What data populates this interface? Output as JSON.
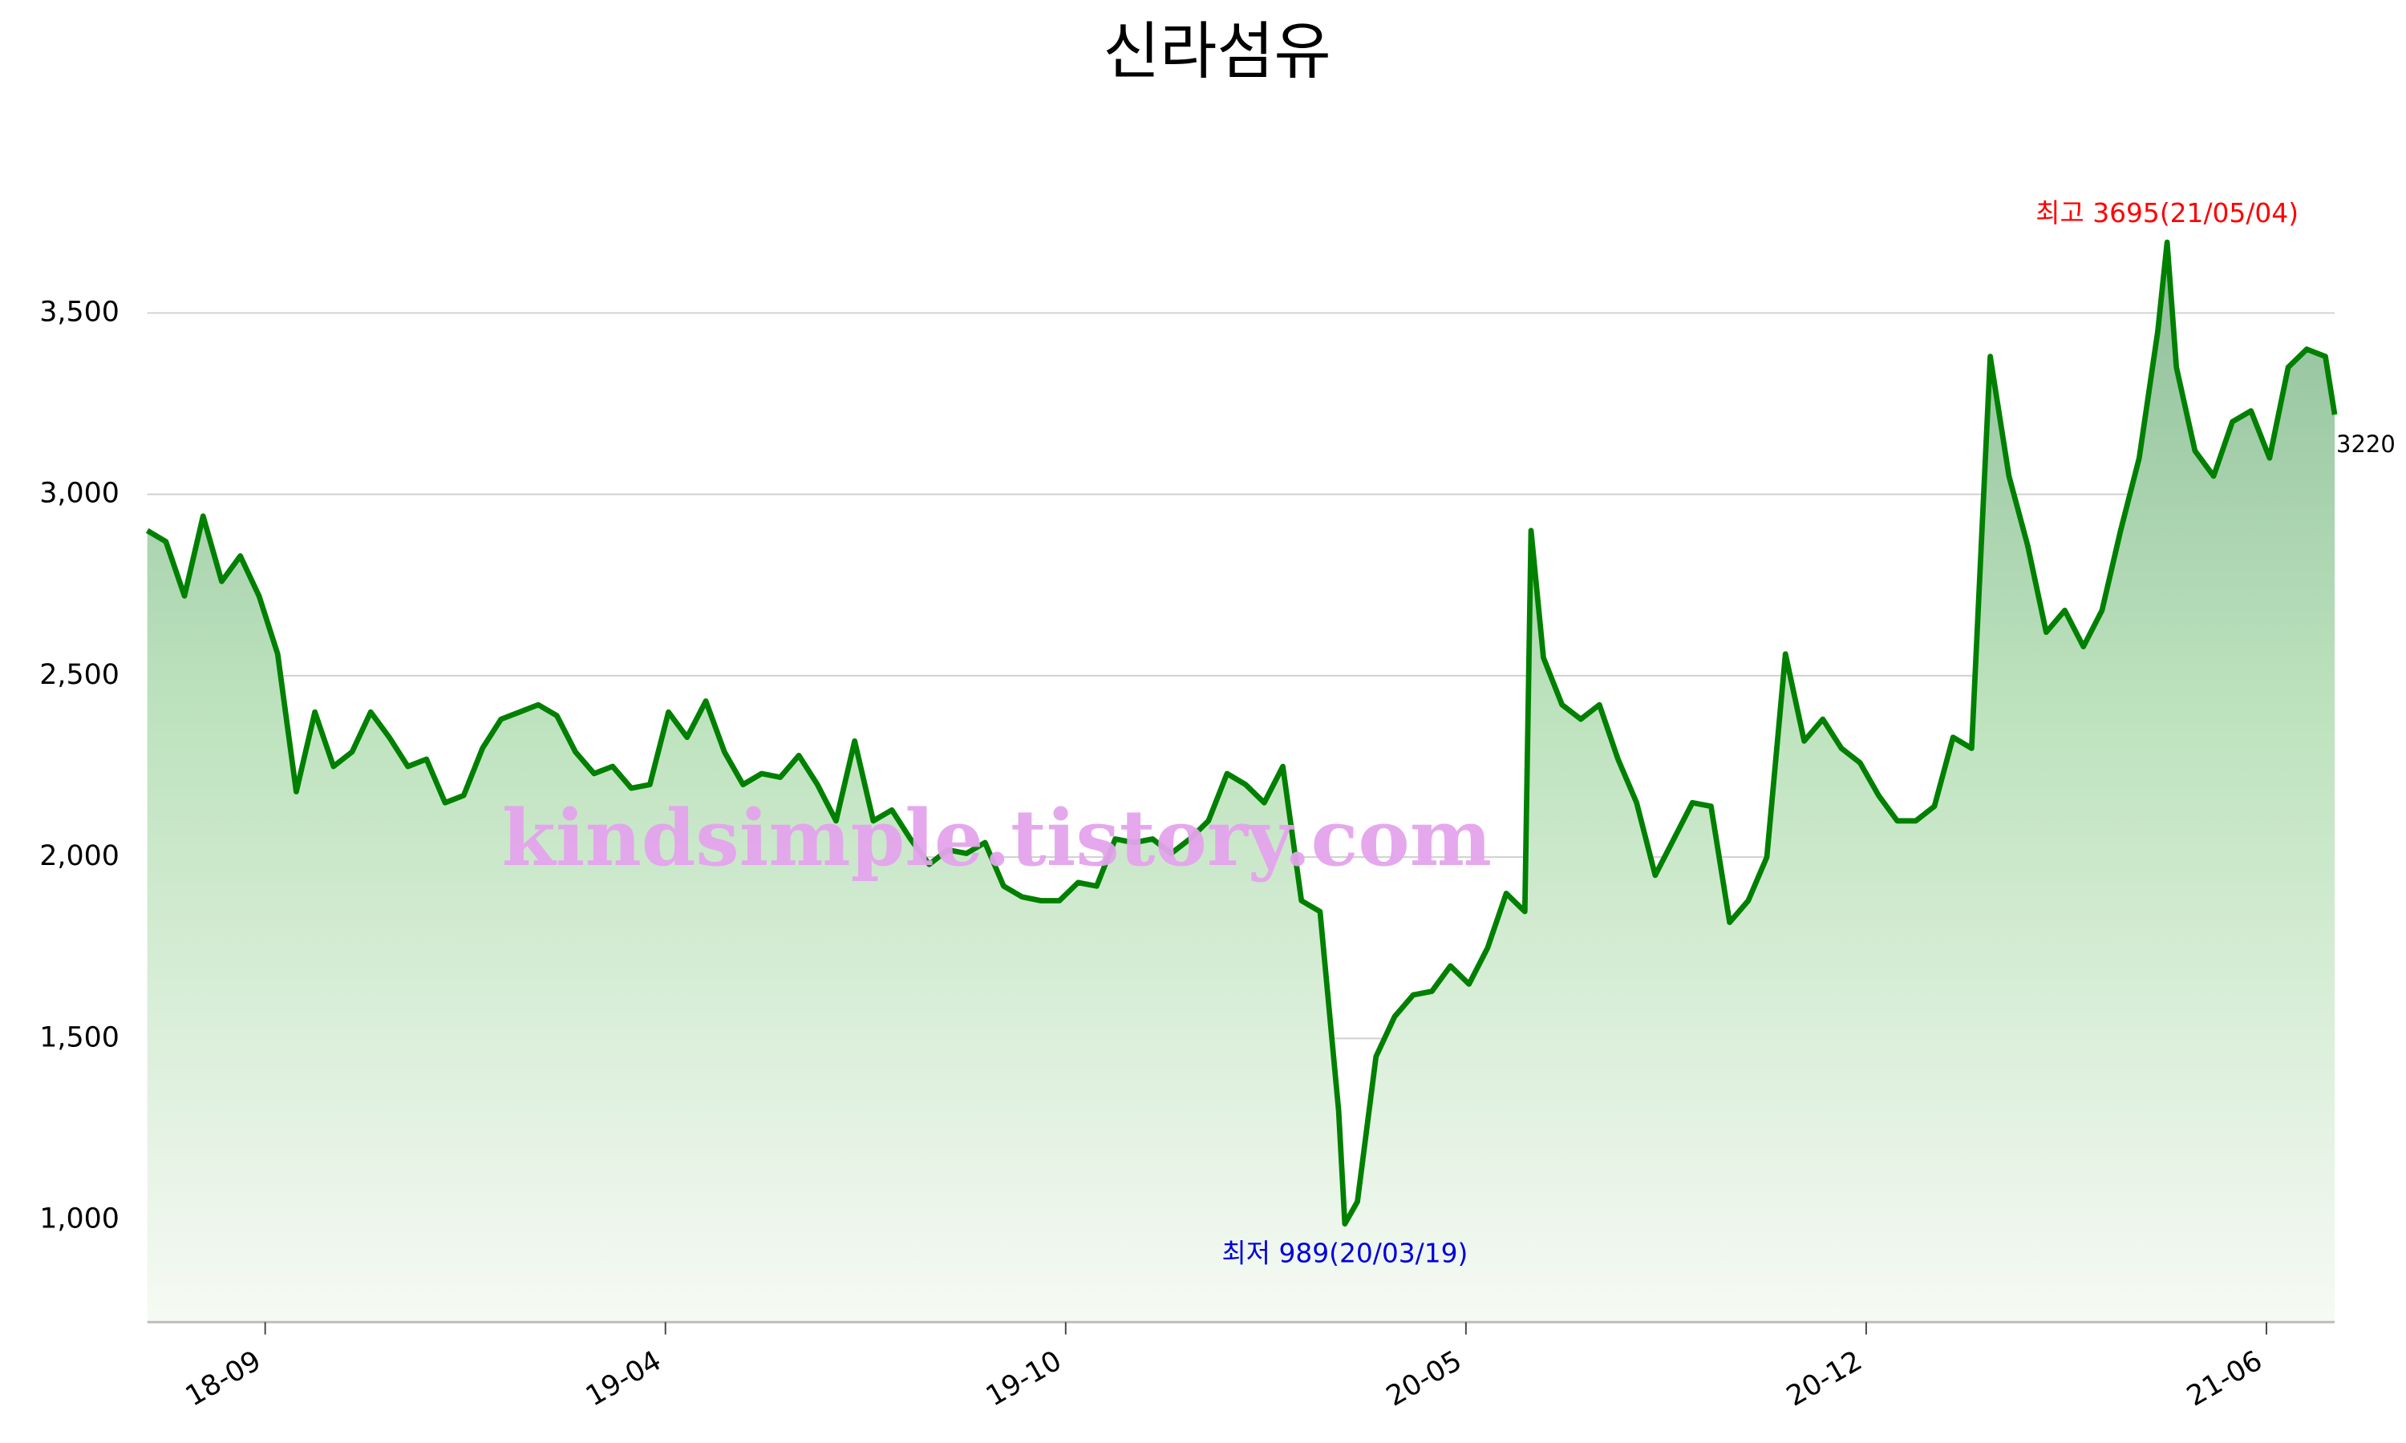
{
  "chart_data": {
    "type": "line",
    "title": "신라섬유",
    "x": [
      0,
      6,
      12,
      18,
      24,
      30,
      36,
      42,
      48,
      54,
      60,
      66,
      72,
      78,
      84,
      90,
      96,
      102,
      108,
      114,
      120,
      126,
      132,
      138,
      144,
      150,
      156,
      162,
      168,
      174,
      180,
      186,
      192,
      198,
      204,
      210,
      216,
      222,
      228,
      234,
      240,
      246,
      252,
      258,
      264,
      270,
      276,
      282,
      288,
      294,
      300,
      306,
      312,
      318,
      324,
      330,
      336,
      342,
      348,
      354,
      360,
      366,
      372,
      378,
      384,
      386,
      390,
      396,
      402,
      408,
      414,
      420,
      426,
      432,
      438,
      444,
      446,
      450,
      456,
      462,
      468,
      474,
      480,
      486,
      492,
      498,
      504,
      510,
      516,
      522,
      528,
      534,
      540,
      546,
      552,
      558,
      564,
      570,
      576,
      582,
      588,
      594,
      600,
      606,
      612,
      618,
      624,
      630,
      636,
      642,
      648,
      651,
      654,
      660,
      666,
      672,
      678,
      684,
      690,
      696,
      702,
      705
    ],
    "series": [
      {
        "name": "신라섬유",
        "color": "#008000",
        "values": [
          2900,
          2870,
          2720,
          2940,
          2760,
          2830,
          2720,
          2560,
          2180,
          2400,
          2250,
          2290,
          2400,
          2330,
          2250,
          2270,
          2150,
          2170,
          2300,
          2380,
          2400,
          2420,
          2390,
          2290,
          2230,
          2250,
          2190,
          2200,
          2400,
          2330,
          2430,
          2290,
          2200,
          2230,
          2220,
          2280,
          2200,
          2100,
          2320,
          2100,
          2130,
          2050,
          1980,
          2020,
          2010,
          2040,
          1920,
          1890,
          1880,
          1880,
          1930,
          1920,
          2050,
          2040,
          2050,
          2010,
          2050,
          2100,
          2230,
          2200,
          2150,
          2250,
          1880,
          1850,
          1300,
          989,
          1050,
          1450,
          1560,
          1620,
          1630,
          1700,
          1650,
          1750,
          1900,
          1850,
          2900,
          2550,
          2420,
          2380,
          2420,
          2270,
          2150,
          1950,
          2050,
          2150,
          2140,
          1820,
          1880,
          2000,
          2560,
          2320,
          2380,
          2300,
          2260,
          2170,
          2100,
          2100,
          2140,
          2330,
          2300,
          3380,
          3050,
          2860,
          2620,
          2680,
          2580,
          2680,
          2900,
          3100,
          3450,
          3695,
          3350,
          3120,
          3050,
          3200,
          3230,
          3100,
          3350,
          3400,
          3380,
          3220
        ]
      }
    ],
    "xlim": [
      0,
      705
    ],
    "xticks": [
      {
        "value": 38,
        "label": "18-09"
      },
      {
        "value": 167,
        "label": "19-04"
      },
      {
        "value": 296,
        "label": "19-10"
      },
      {
        "value": 425,
        "label": "20-05"
      },
      {
        "value": 554,
        "label": "20-12"
      },
      {
        "value": 683,
        "label": "21-06"
      }
    ],
    "ylim": [
      718,
      3880
    ],
    "yticks": [
      {
        "value": 1000,
        "label": "1,000"
      },
      {
        "value": 1500,
        "label": "1,500"
      },
      {
        "value": 2000,
        "label": "2,000"
      },
      {
        "value": 2500,
        "label": "2,500"
      },
      {
        "value": 3000,
        "label": "3,000"
      },
      {
        "value": 3500,
        "label": "3,500"
      }
    ],
    "grid": true,
    "annotations": {
      "high": "최고 3695(21/05/04)",
      "low": "최저 989(20/03/19)",
      "last": "3220"
    },
    "watermark": "kindsimple.tistory.com"
  }
}
